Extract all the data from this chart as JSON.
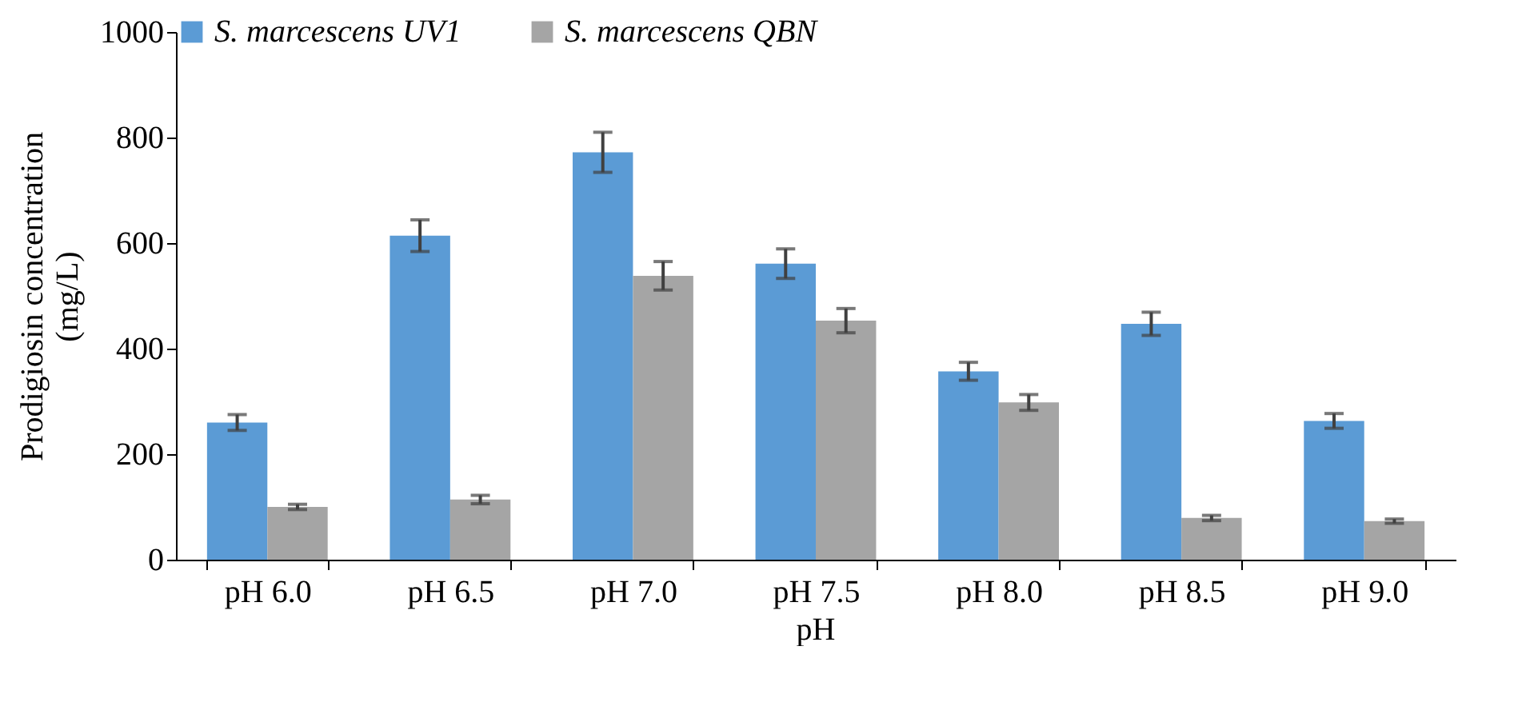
{
  "chart_data": {
    "type": "bar",
    "xlabel": "pH",
    "ylabel": "Prodigiosin concentration (mg/L)",
    "categories": [
      "pH 6.0",
      "pH 6.5",
      "pH 7.0",
      "pH 7.5",
      "pH 8.0",
      "pH 8.5",
      "pH 9.0"
    ],
    "series": [
      {
        "name": "S. marcescens UV1",
        "color": "#5b9bd5",
        "values": [
          260,
          614,
          772,
          561,
          357,
          447,
          263
        ],
        "errors": [
          15,
          30,
          38,
          28,
          17,
          22,
          14
        ]
      },
      {
        "name": "S. marcescens QBN",
        "color": "#a5a5a5",
        "values": [
          100,
          114,
          538,
          453,
          298,
          79,
          73
        ],
        "errors": [
          5,
          8,
          27,
          23,
          15,
          5,
          4
        ]
      }
    ],
    "ylim": [
      0,
      1000
    ],
    "yticks": [
      0,
      200,
      400,
      600,
      800,
      1000
    ],
    "grid": false,
    "legend": "top"
  }
}
